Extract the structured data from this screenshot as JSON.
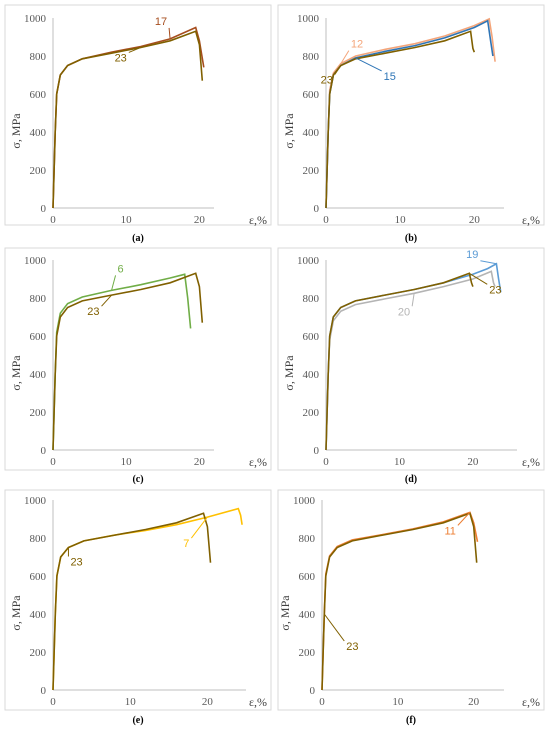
{
  "figure": {
    "colors": {
      "s23": "#806000",
      "s17": "#a64d1e",
      "s12": "#f4a57a",
      "s15": "#2e75b6",
      "s6": "#70ad47",
      "s20": "#b4b4b4",
      "s19": "#5b9bd5",
      "s7": "#ffc000",
      "s11": "#ed7d31"
    }
  },
  "chart_data": [
    {
      "type": "line",
      "panel_caption": "(a)",
      "xlabel": "ε,%",
      "ylabel": "σ, MPa",
      "xlim": [
        0,
        22
      ],
      "ylim": [
        0,
        1000
      ],
      "xticks": [
        0,
        10,
        20
      ],
      "yticks": [
        0,
        200,
        400,
        600,
        800,
        1000
      ],
      "series": [
        {
          "name": "17",
          "color": "#a64d1e",
          "points": [
            [
              0,
              0
            ],
            [
              0.3,
              400
            ],
            [
              0.5,
              600
            ],
            [
              1,
              700
            ],
            [
              2,
              750
            ],
            [
              4,
              785
            ],
            [
              8,
              820
            ],
            [
              12,
              850
            ],
            [
              16,
              890
            ],
            [
              19.5,
              950
            ],
            [
              20,
              880
            ],
            [
              20.6,
              740
            ]
          ]
        },
        {
          "name": "23",
          "color": "#806000",
          "points": [
            [
              0,
              0
            ],
            [
              0.3,
              400
            ],
            [
              0.5,
              600
            ],
            [
              1,
              700
            ],
            [
              2,
              750
            ],
            [
              4,
              785
            ],
            [
              8,
              815
            ],
            [
              12,
              845
            ],
            [
              16,
              880
            ],
            [
              19.5,
              930
            ],
            [
              20,
              860
            ],
            [
              20.4,
              670
            ]
          ]
        }
      ],
      "annotations": [
        {
          "text": "17",
          "series": "17"
        },
        {
          "text": "23",
          "series": "23"
        }
      ]
    },
    {
      "type": "line",
      "panel_caption": "(b)",
      "xlabel": "ε,%",
      "ylabel": "σ, MPa",
      "xlim": [
        0,
        24
      ],
      "ylim": [
        0,
        1000
      ],
      "xticks": [
        0,
        10,
        20
      ],
      "yticks": [
        0,
        200,
        400,
        600,
        800,
        1000
      ],
      "series": [
        {
          "name": "12",
          "color": "#f4a57a",
          "points": [
            [
              0,
              0
            ],
            [
              0.3,
              400
            ],
            [
              0.5,
              620
            ],
            [
              1,
              710
            ],
            [
              2,
              760
            ],
            [
              4,
              800
            ],
            [
              8,
              835
            ],
            [
              12,
              865
            ],
            [
              16,
              905
            ],
            [
              20,
              960
            ],
            [
              22,
              995
            ],
            [
              22.4,
              900
            ],
            [
              22.8,
              770
            ]
          ]
        },
        {
          "name": "15",
          "color": "#2e75b6",
          "points": [
            [
              0,
              0
            ],
            [
              0.3,
              400
            ],
            [
              0.5,
              600
            ],
            [
              1,
              700
            ],
            [
              2,
              750
            ],
            [
              4,
              790
            ],
            [
              8,
              825
            ],
            [
              12,
              855
            ],
            [
              16,
              895
            ],
            [
              20,
              950
            ],
            [
              21.8,
              985
            ],
            [
              22.2,
              880
            ],
            [
              22.5,
              800
            ]
          ]
        },
        {
          "name": "23",
          "color": "#806000",
          "points": [
            [
              0,
              0
            ],
            [
              0.3,
              400
            ],
            [
              0.5,
              600
            ],
            [
              1,
              700
            ],
            [
              2,
              750
            ],
            [
              4,
              785
            ],
            [
              8,
              815
            ],
            [
              12,
              845
            ],
            [
              16,
              880
            ],
            [
              19.5,
              930
            ],
            [
              19.8,
              840
            ],
            [
              20,
              820
            ]
          ]
        }
      ],
      "annotations": [
        {
          "text": "12",
          "series": "12"
        },
        {
          "text": "23",
          "series": "23"
        },
        {
          "text": "15",
          "series": "15"
        }
      ]
    },
    {
      "type": "line",
      "panel_caption": "(c)",
      "xlabel": "ε,%",
      "ylabel": "σ, MPa",
      "xlim": [
        0,
        22
      ],
      "ylim": [
        0,
        1000
      ],
      "xticks": [
        0,
        10,
        20
      ],
      "yticks": [
        0,
        200,
        400,
        600,
        800,
        1000
      ],
      "series": [
        {
          "name": "6",
          "color": "#70ad47",
          "points": [
            [
              0,
              0
            ],
            [
              0.3,
              400
            ],
            [
              0.5,
              620
            ],
            [
              1,
              720
            ],
            [
              2,
              770
            ],
            [
              4,
              805
            ],
            [
              8,
              840
            ],
            [
              12,
              870
            ],
            [
              16,
              905
            ],
            [
              18,
              925
            ],
            [
              18.4,
              800
            ],
            [
              18.8,
              640
            ]
          ]
        },
        {
          "name": "23",
          "color": "#806000",
          "points": [
            [
              0,
              0
            ],
            [
              0.3,
              400
            ],
            [
              0.5,
              600
            ],
            [
              1,
              700
            ],
            [
              2,
              750
            ],
            [
              4,
              785
            ],
            [
              8,
              815
            ],
            [
              12,
              845
            ],
            [
              16,
              880
            ],
            [
              19.5,
              930
            ],
            [
              20,
              860
            ],
            [
              20.4,
              670
            ]
          ]
        }
      ],
      "annotations": [
        {
          "text": "6",
          "series": "6"
        },
        {
          "text": "23",
          "series": "23"
        }
      ]
    },
    {
      "type": "line",
      "panel_caption": "(d)",
      "xlabel": "ε,%",
      "ylabel": "σ, MPa",
      "xlim": [
        0,
        26
      ],
      "ylim": [
        0,
        1000
      ],
      "xticks": [
        0,
        10,
        20
      ],
      "yticks": [
        0,
        200,
        400,
        600,
        800,
        1000
      ],
      "series": [
        {
          "name": "19",
          "color": "#5b9bd5",
          "points": [
            [
              0,
              0
            ],
            [
              0.3,
              400
            ],
            [
              0.5,
              600
            ],
            [
              1,
              700
            ],
            [
              2,
              750
            ],
            [
              4,
              785
            ],
            [
              8,
              815
            ],
            [
              12,
              845
            ],
            [
              16,
              880
            ],
            [
              20,
              925
            ],
            [
              22,
              955
            ],
            [
              23.2,
              980
            ],
            [
              23.5,
              900
            ],
            [
              23.8,
              830
            ]
          ]
        },
        {
          "name": "20",
          "color": "#b4b4b4",
          "points": [
            [
              0,
              0
            ],
            [
              0.3,
              400
            ],
            [
              0.5,
              580
            ],
            [
              1,
              680
            ],
            [
              2,
              730
            ],
            [
              4,
              765
            ],
            [
              8,
              795
            ],
            [
              12,
              825
            ],
            [
              16,
              860
            ],
            [
              20,
              900
            ],
            [
              22.5,
              940
            ],
            [
              22.8,
              880
            ],
            [
              23,
              860
            ]
          ]
        },
        {
          "name": "23",
          "color": "#806000",
          "points": [
            [
              0,
              0
            ],
            [
              0.3,
              400
            ],
            [
              0.5,
              600
            ],
            [
              1,
              700
            ],
            [
              2,
              750
            ],
            [
              4,
              785
            ],
            [
              8,
              815
            ],
            [
              12,
              845
            ],
            [
              16,
              880
            ],
            [
              19.5,
              930
            ],
            [
              19.8,
              880
            ],
            [
              20,
              860
            ]
          ]
        }
      ],
      "annotations": [
        {
          "text": "19",
          "series": "19"
        },
        {
          "text": "20",
          "series": "20"
        },
        {
          "text": "23",
          "series": "23"
        }
      ]
    },
    {
      "type": "line",
      "panel_caption": "(e)",
      "xlabel": "ε,%",
      "ylabel": "σ, MPa",
      "xlim": [
        0,
        25
      ],
      "ylim": [
        0,
        1000
      ],
      "xticks": [
        0,
        10,
        20
      ],
      "yticks": [
        0,
        200,
        400,
        600,
        800,
        1000
      ],
      "series": [
        {
          "name": "7",
          "color": "#ffc000",
          "points": [
            [
              0,
              0
            ],
            [
              0.3,
              400
            ],
            [
              0.5,
              600
            ],
            [
              1,
              700
            ],
            [
              2,
              750
            ],
            [
              4,
              785
            ],
            [
              8,
              815
            ],
            [
              12,
              840
            ],
            [
              16,
              870
            ],
            [
              20,
              910
            ],
            [
              24,
              955
            ],
            [
              24.3,
              920
            ],
            [
              24.5,
              870
            ]
          ]
        },
        {
          "name": "23",
          "color": "#806000",
          "points": [
            [
              0,
              0
            ],
            [
              0.3,
              400
            ],
            [
              0.5,
              600
            ],
            [
              1,
              700
            ],
            [
              2,
              750
            ],
            [
              4,
              785
            ],
            [
              8,
              815
            ],
            [
              12,
              845
            ],
            [
              16,
              880
            ],
            [
              19.5,
              930
            ],
            [
              20,
              860
            ],
            [
              20.4,
              670
            ]
          ]
        }
      ],
      "annotations": [
        {
          "text": "23",
          "series": "23"
        },
        {
          "text": "7",
          "series": "7"
        }
      ]
    },
    {
      "type": "line",
      "panel_caption": "(f)",
      "xlabel": "ε,%",
      "ylabel": "σ, MPa",
      "xlim": [
        0,
        24
      ],
      "ylim": [
        0,
        1000
      ],
      "xticks": [
        0,
        10,
        20
      ],
      "yticks": [
        0,
        200,
        400,
        600,
        800,
        1000
      ],
      "series": [
        {
          "name": "11",
          "color": "#ed7d31",
          "points": [
            [
              0,
              0
            ],
            [
              0.3,
              400
            ],
            [
              0.5,
              610
            ],
            [
              1,
              705
            ],
            [
              2,
              755
            ],
            [
              4,
              790
            ],
            [
              8,
              818
            ],
            [
              12,
              848
            ],
            [
              16,
              885
            ],
            [
              19.5,
              935
            ],
            [
              20,
              880
            ],
            [
              20.5,
              780
            ]
          ]
        },
        {
          "name": "23",
          "color": "#806000",
          "points": [
            [
              0,
              0
            ],
            [
              0.3,
              400
            ],
            [
              0.5,
              600
            ],
            [
              1,
              700
            ],
            [
              2,
              750
            ],
            [
              4,
              785
            ],
            [
              8,
              815
            ],
            [
              12,
              845
            ],
            [
              16,
              880
            ],
            [
              19.5,
              930
            ],
            [
              20,
              860
            ],
            [
              20.4,
              670
            ]
          ]
        }
      ],
      "annotations": [
        {
          "text": "11",
          "series": "11"
        },
        {
          "text": "23",
          "series": "23"
        }
      ]
    }
  ]
}
